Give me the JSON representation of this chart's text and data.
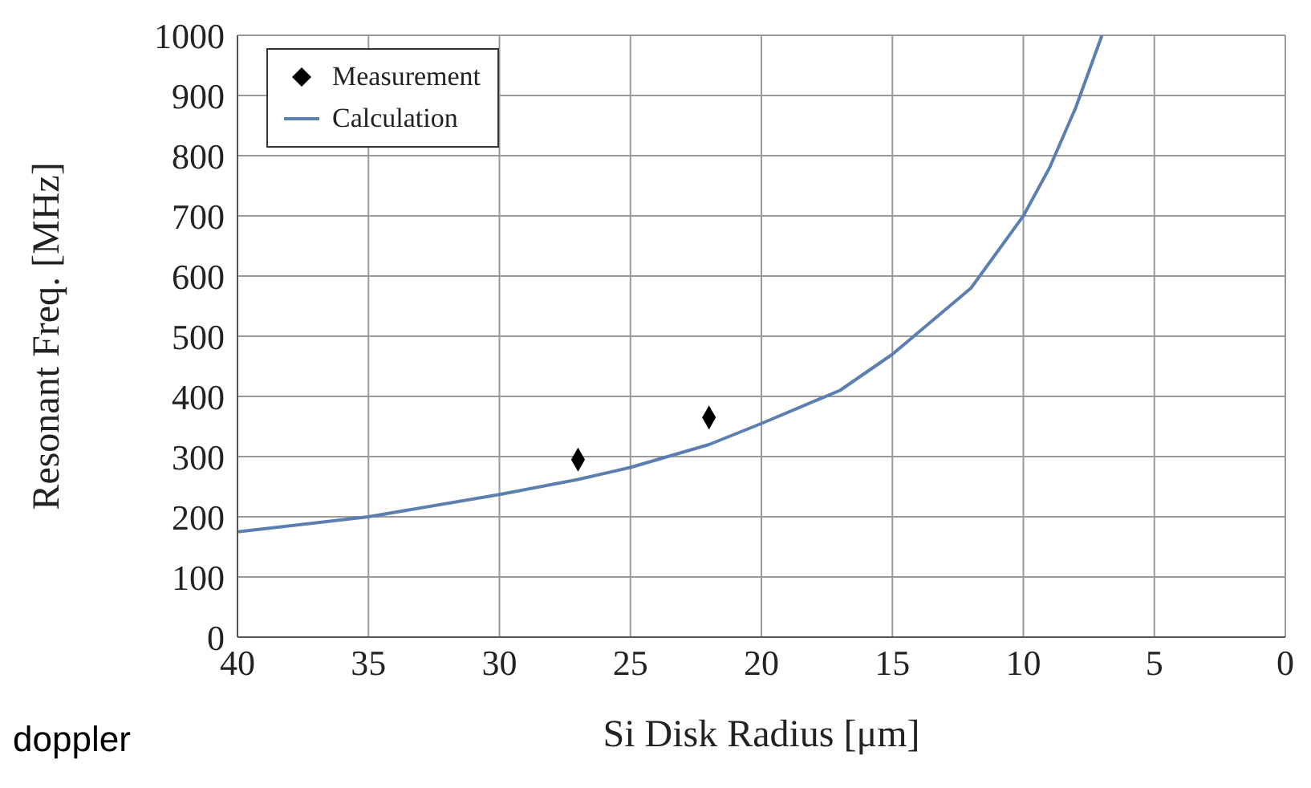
{
  "chart_data": {
    "type": "scatter",
    "xlabel": "Si Disk Radius [μm]",
    "ylabel": "Resonant Freq. [MHz]",
    "xlim": [
      40,
      0
    ],
    "xticks": [
      40,
      35,
      30,
      25,
      20,
      15,
      10,
      5,
      0
    ],
    "ylim": [
      0,
      1000
    ],
    "yticks": [
      0,
      100,
      200,
      300,
      400,
      500,
      600,
      700,
      800,
      900,
      1000
    ],
    "grid": true,
    "legend": "top left",
    "annotations": [
      "doppler"
    ],
    "series": [
      {
        "name": "Measurement",
        "marker": "diamond",
        "color": "#000000",
        "x": [
          27,
          22
        ],
        "values": [
          295,
          365
        ]
      },
      {
        "name": "Calculation",
        "type": "line",
        "marker": "none",
        "color": "#5b7fb0",
        "x": [
          40,
          35,
          30,
          27,
          25,
          22,
          20,
          17,
          15,
          12,
          10,
          9,
          8,
          7
        ],
        "values": [
          175,
          200,
          237,
          262,
          282,
          320,
          355,
          410,
          470,
          580,
          700,
          780,
          880,
          1000
        ]
      }
    ]
  }
}
